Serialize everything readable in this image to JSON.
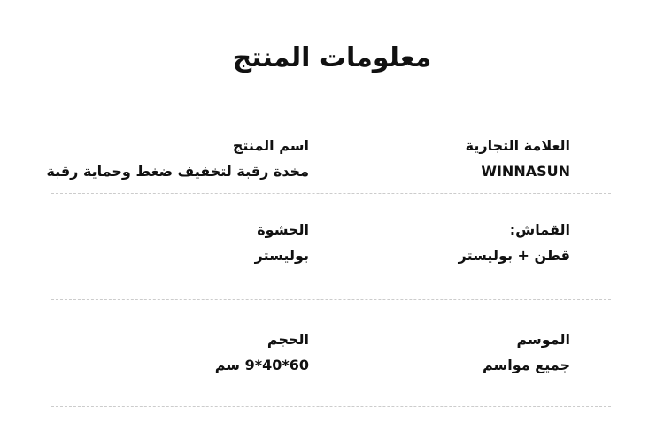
{
  "header": {
    "title": "معلومات المنتج"
  },
  "rows": [
    [
      {
        "label": "العلامة التجارية",
        "value": "WINNASUN"
      },
      {
        "label": "اسم المنتج",
        "value": "مخدة رقبة لتخفيف ضغط وحماية رقبة"
      }
    ],
    [
      {
        "label": "القماش:",
        "value": "قطن + بوليستر"
      },
      {
        "label": "الحشوة",
        "value": "بوليستر"
      }
    ],
    [
      {
        "label": "الموسم",
        "value": "جميع مواسم"
      },
      {
        "label": "الحجم",
        "value": "60*40*9 سم"
      }
    ]
  ]
}
